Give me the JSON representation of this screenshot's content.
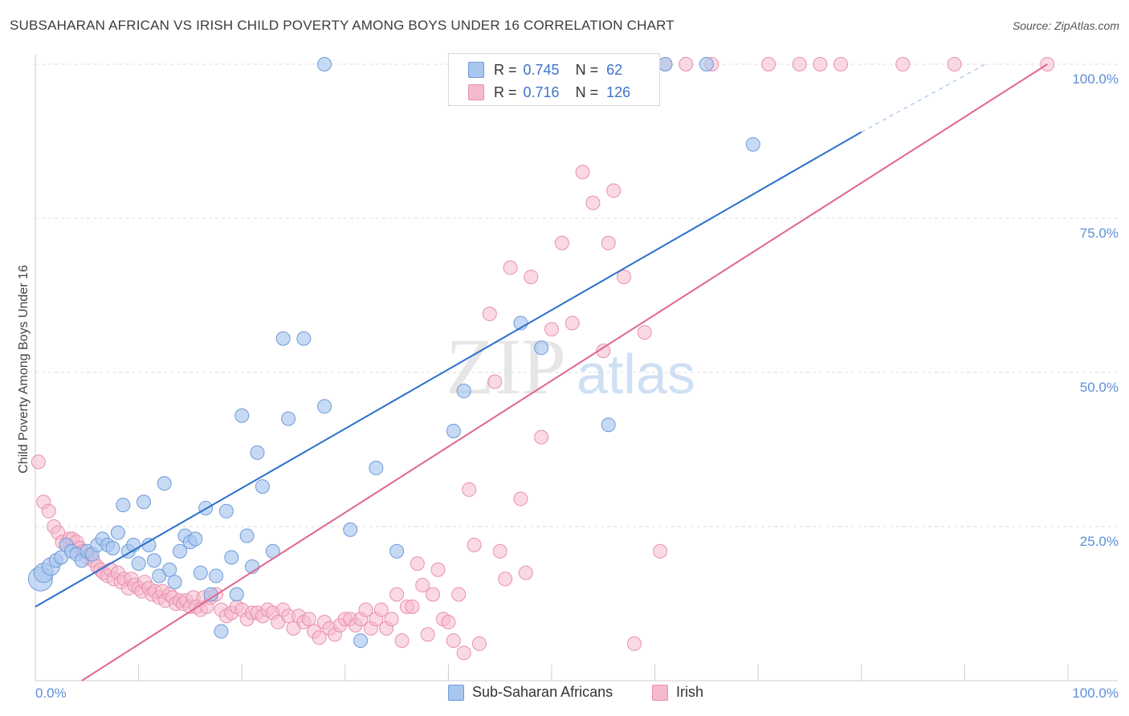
{
  "title": "SUBSAHARAN AFRICAN VS IRISH CHILD POVERTY AMONG BOYS UNDER 16 CORRELATION CHART",
  "source": "Source: ZipAtlas.com",
  "watermark": {
    "zip": "ZIP",
    "atlas": "atlas"
  },
  "colors": {
    "blue_fill": "#a9c6ef",
    "blue_stroke": "#6f9ad8",
    "blue_line": "#2a6fcc",
    "pink_fill": "#f5b9cc",
    "pink_stroke": "#e890ad",
    "pink_line": "#e0648f",
    "tick_text": "#5b8fd9",
    "grid": "#dddddd"
  },
  "legend": {
    "r_label": "R =",
    "n_label": "N =",
    "rows": [
      {
        "r": "0.745",
        "n": "62"
      },
      {
        "r": "0.716",
        "n": "126"
      }
    ]
  },
  "bottom_legend": [
    "Sub-Saharan Africans",
    "Irish"
  ],
  "chart_data": {
    "type": "scatter",
    "title": "SUBSAHARAN AFRICAN VS IRISH CHILD POVERTY AMONG BOYS UNDER 16 CORRELATION CHART",
    "xlabel": "",
    "ylabel": "Child Poverty Among Boys Under 16",
    "xlim": [
      0,
      100
    ],
    "ylim": [
      0,
      100
    ],
    "x_tick_labels": [
      "0.0%",
      "100.0%"
    ],
    "y_tick_values": [
      25,
      50,
      75,
      100
    ],
    "y_tick_labels": [
      "25.0%",
      "50.0%",
      "75.0%",
      "100.0%"
    ],
    "grid": "horizontal dashed",
    "legend_position": "top-center",
    "series": [
      {
        "name": "Sub-Saharan Africans",
        "R": 0.745,
        "N": 62,
        "trend": {
          "x": [
            0,
            80
          ],
          "y": [
            12,
            89
          ],
          "dashed_extension_to": [
            92,
            100
          ]
        },
        "points": [
          [
            0.5,
            16.5
          ],
          [
            0.8,
            17.5
          ],
          [
            1.5,
            18.5
          ],
          [
            2.0,
            19.5
          ],
          [
            2.5,
            20.0
          ],
          [
            3.0,
            22.0
          ],
          [
            3.5,
            21.0
          ],
          [
            4.0,
            20.5
          ],
          [
            4.5,
            19.5
          ],
          [
            5.0,
            21.0
          ],
          [
            5.5,
            20.5
          ],
          [
            6.0,
            22.0
          ],
          [
            6.5,
            23.0
          ],
          [
            7.0,
            22.0
          ],
          [
            7.5,
            21.5
          ],
          [
            8.0,
            24.0
          ],
          [
            8.5,
            28.5
          ],
          [
            9.0,
            21.0
          ],
          [
            9.5,
            22.0
          ],
          [
            10.0,
            19.0
          ],
          [
            10.5,
            29.0
          ],
          [
            11.0,
            22.0
          ],
          [
            11.5,
            19.5
          ],
          [
            12.0,
            17.0
          ],
          [
            12.5,
            32.0
          ],
          [
            13.0,
            18.0
          ],
          [
            13.5,
            16.0
          ],
          [
            14.0,
            21.0
          ],
          [
            14.5,
            23.5
          ],
          [
            15.0,
            22.5
          ],
          [
            15.5,
            23.0
          ],
          [
            16.0,
            17.5
          ],
          [
            16.5,
            28.0
          ],
          [
            17.0,
            14.0
          ],
          [
            17.5,
            17.0
          ],
          [
            18.0,
            8.0
          ],
          [
            18.5,
            27.5
          ],
          [
            19.0,
            20.0
          ],
          [
            19.5,
            14.0
          ],
          [
            20.0,
            43.0
          ],
          [
            20.5,
            23.5
          ],
          [
            21.0,
            18.5
          ],
          [
            21.5,
            37.0
          ],
          [
            22.0,
            31.5
          ],
          [
            23.0,
            21.0
          ],
          [
            24.0,
            55.5
          ],
          [
            24.5,
            42.5
          ],
          [
            26.0,
            55.5
          ],
          [
            28.0,
            44.5
          ],
          [
            28.0,
            100
          ],
          [
            30.5,
            24.5
          ],
          [
            31.5,
            6.5
          ],
          [
            33.0,
            34.5
          ],
          [
            35.0,
            21.0
          ],
          [
            40.5,
            40.5
          ],
          [
            41.5,
            47.0
          ],
          [
            47.0,
            58.0
          ],
          [
            49.0,
            54.0
          ],
          [
            55.5,
            41.5
          ],
          [
            61.0,
            100
          ],
          [
            65.0,
            100
          ],
          [
            69.5,
            87.0
          ]
        ]
      },
      {
        "name": "Irish",
        "R": 0.716,
        "N": 126,
        "trend": {
          "x": [
            4.5,
            98
          ],
          "y": [
            0,
            100
          ]
        },
        "points": [
          [
            0.3,
            35.5
          ],
          [
            0.8,
            29.0
          ],
          [
            1.3,
            27.5
          ],
          [
            1.8,
            25.0
          ],
          [
            2.2,
            24.0
          ],
          [
            2.6,
            22.5
          ],
          [
            3.0,
            22.0
          ],
          [
            3.3,
            23.0
          ],
          [
            3.6,
            23.0
          ],
          [
            4.0,
            22.5
          ],
          [
            4.3,
            21.5
          ],
          [
            4.6,
            21.0
          ],
          [
            5.0,
            20.0
          ],
          [
            5.3,
            20.5
          ],
          [
            5.6,
            19.5
          ],
          [
            6.0,
            18.5
          ],
          [
            6.3,
            18.0
          ],
          [
            6.6,
            17.5
          ],
          [
            7.0,
            17.0
          ],
          [
            7.3,
            18.0
          ],
          [
            7.6,
            16.5
          ],
          [
            8.0,
            17.5
          ],
          [
            8.3,
            16.0
          ],
          [
            8.6,
            16.5
          ],
          [
            9.0,
            15.0
          ],
          [
            9.3,
            16.5
          ],
          [
            9.6,
            15.5
          ],
          [
            10.0,
            15.0
          ],
          [
            10.3,
            14.5
          ],
          [
            10.6,
            16.0
          ],
          [
            11.0,
            15.0
          ],
          [
            11.3,
            14.0
          ],
          [
            11.6,
            14.5
          ],
          [
            12.0,
            13.5
          ],
          [
            12.3,
            14.5
          ],
          [
            12.6,
            13.0
          ],
          [
            13.0,
            14.0
          ],
          [
            13.3,
            13.5
          ],
          [
            13.6,
            12.5
          ],
          [
            14.0,
            13.0
          ],
          [
            14.3,
            12.5
          ],
          [
            14.6,
            13.0
          ],
          [
            15.0,
            12.0
          ],
          [
            15.3,
            13.5
          ],
          [
            15.6,
            12.0
          ],
          [
            16.0,
            11.5
          ],
          [
            16.3,
            13.5
          ],
          [
            16.6,
            12.0
          ],
          [
            17.0,
            13.5
          ],
          [
            17.5,
            14.0
          ],
          [
            18.0,
            11.5
          ],
          [
            18.5,
            10.5
          ],
          [
            19.0,
            11.0
          ],
          [
            19.5,
            12.0
          ],
          [
            20.0,
            11.5
          ],
          [
            20.5,
            10.0
          ],
          [
            21.0,
            11.0
          ],
          [
            21.5,
            11.0
          ],
          [
            22.0,
            10.5
          ],
          [
            22.5,
            11.5
          ],
          [
            23.0,
            11.0
          ],
          [
            23.5,
            9.5
          ],
          [
            24.0,
            11.5
          ],
          [
            24.5,
            10.5
          ],
          [
            25.0,
            8.5
          ],
          [
            25.5,
            10.5
          ],
          [
            26.0,
            9.5
          ],
          [
            26.5,
            10.0
          ],
          [
            27.0,
            8.0
          ],
          [
            27.5,
            7.0
          ],
          [
            28.0,
            9.5
          ],
          [
            28.5,
            8.5
          ],
          [
            29.0,
            7.5
          ],
          [
            29.5,
            9.0
          ],
          [
            30.0,
            10.0
          ],
          [
            30.5,
            10.0
          ],
          [
            31.0,
            9.0
          ],
          [
            31.5,
            10.0
          ],
          [
            32.0,
            11.5
          ],
          [
            32.5,
            8.5
          ],
          [
            33.0,
            10.0
          ],
          [
            33.5,
            11.5
          ],
          [
            34.0,
            8.5
          ],
          [
            34.5,
            10.0
          ],
          [
            35.0,
            14.0
          ],
          [
            35.5,
            6.5
          ],
          [
            36.0,
            12.0
          ],
          [
            36.5,
            12.0
          ],
          [
            37.0,
            19.0
          ],
          [
            37.5,
            15.5
          ],
          [
            38.0,
            7.5
          ],
          [
            38.5,
            14.0
          ],
          [
            39.0,
            18.0
          ],
          [
            39.5,
            10.0
          ],
          [
            40.0,
            9.5
          ],
          [
            40.5,
            6.5
          ],
          [
            41.0,
            14.0
          ],
          [
            41.5,
            4.5
          ],
          [
            42.0,
            31.0
          ],
          [
            42.5,
            22.0
          ],
          [
            43.0,
            6.0
          ],
          [
            44.0,
            59.5
          ],
          [
            44.5,
            48.5
          ],
          [
            45.0,
            21.0
          ],
          [
            45.5,
            16.5
          ],
          [
            46.0,
            67.0
          ],
          [
            47.0,
            29.5
          ],
          [
            47.5,
            17.5
          ],
          [
            48.0,
            65.5
          ],
          [
            49.0,
            39.5
          ],
          [
            50.0,
            57.0
          ],
          [
            51.0,
            71.0
          ],
          [
            52.0,
            58.0
          ],
          [
            53.0,
            82.5
          ],
          [
            54.0,
            77.5
          ],
          [
            55.0,
            53.5
          ],
          [
            55.5,
            71.0
          ],
          [
            56.0,
            79.5
          ],
          [
            57.0,
            65.5
          ],
          [
            58.0,
            6.0
          ],
          [
            59.0,
            56.5
          ],
          [
            60.5,
            21.0
          ],
          [
            61.0,
            100
          ],
          [
            63.0,
            100
          ],
          [
            65.5,
            100
          ],
          [
            71.0,
            100
          ],
          [
            74.0,
            100
          ],
          [
            76.0,
            100
          ],
          [
            78.0,
            100
          ],
          [
            84.0,
            100
          ],
          [
            89.0,
            100
          ],
          [
            98.0,
            100
          ]
        ]
      }
    ]
  }
}
